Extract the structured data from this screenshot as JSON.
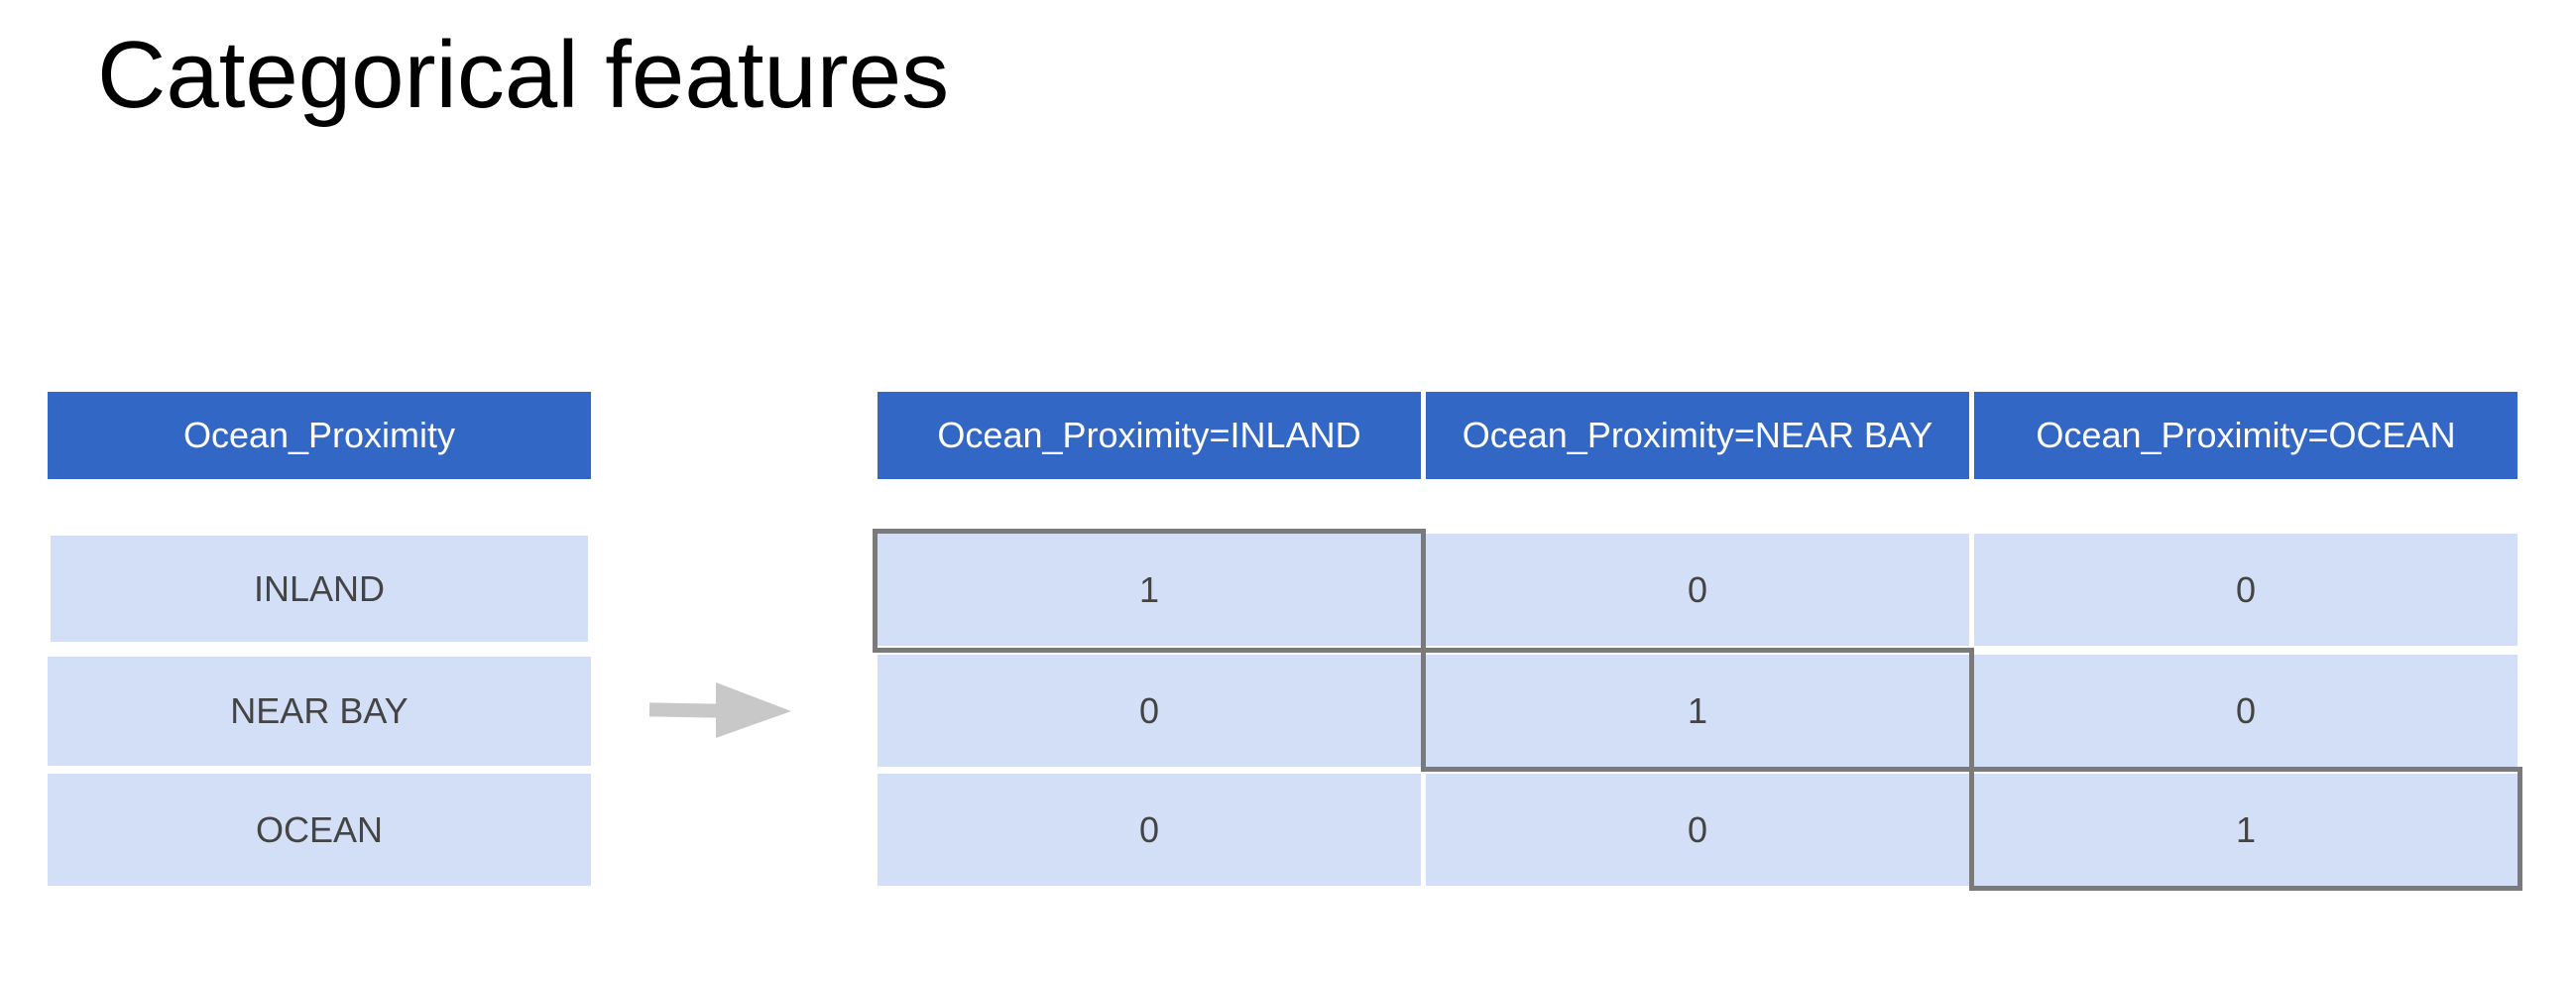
{
  "title": "Categorical features",
  "source_table": {
    "header": "Ocean_Proximity",
    "rows": [
      "INLAND",
      "NEAR BAY",
      "OCEAN"
    ]
  },
  "encoded_table": {
    "headers": [
      "Ocean_Proximity=INLAND",
      "Ocean_Proximity=NEAR BAY",
      "Ocean_Proximity=OCEAN"
    ],
    "rows": [
      [
        "1",
        "0",
        "0"
      ],
      [
        "0",
        "1",
        "0"
      ],
      [
        "0",
        "0",
        "1"
      ]
    ]
  },
  "colors": {
    "header_bg": "#3367c6",
    "cell_bg": "#d2dff6",
    "highlight_border": "#7a7a7a",
    "arrow": "#c8c8c8"
  },
  "icons": {
    "arrow": "right-arrow-icon"
  }
}
